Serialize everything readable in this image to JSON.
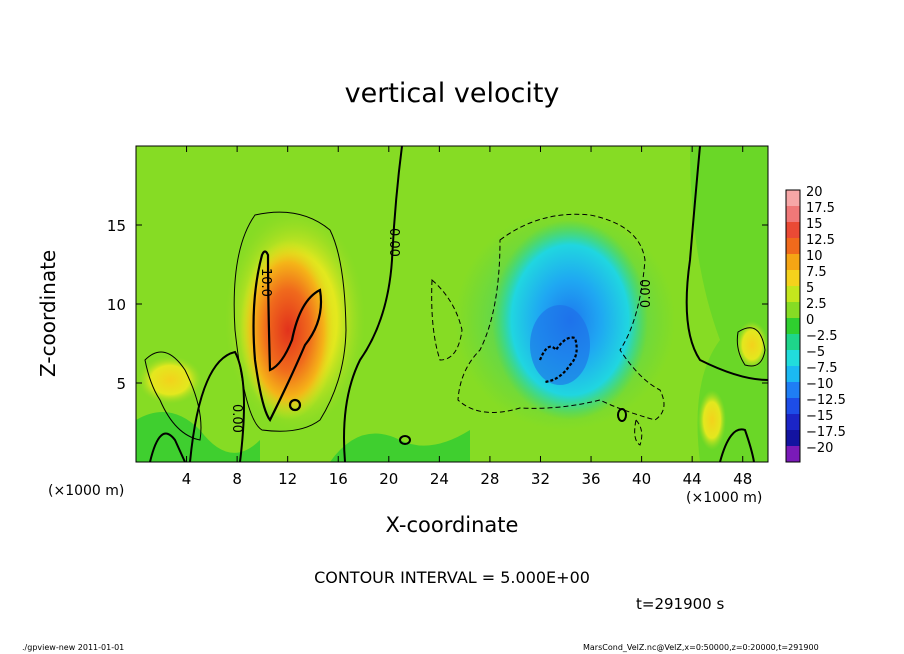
{
  "chart_data": {
    "type": "heatmap",
    "title": "vertical velocity",
    "xlabel": "X-coordinate",
    "ylabel": "Z-coordinate",
    "x_unit": "(×1000 m)",
    "y_unit": "(×1000 m)",
    "xlim": [
      0,
      50
    ],
    "ylim": [
      0,
      20
    ],
    "x_ticks": [
      "4",
      "8",
      "12",
      "16",
      "20",
      "24",
      "28",
      "32",
      "36",
      "40",
      "44",
      "48"
    ],
    "y_ticks": [
      "5",
      "10",
      "15"
    ],
    "colorbar": {
      "labels": [
        "20",
        "17.5",
        "15",
        "12.5",
        "10",
        "7.5",
        "5",
        "2.5",
        "0",
        "−2.5",
        "−5",
        "−7.5",
        "−10",
        "−12.5",
        "−15",
        "−17.5",
        "−20"
      ],
      "colors": [
        "#f7a7a7",
        "#f07878",
        "#ea4a35",
        "#f06a1c",
        "#f5a514",
        "#f5d21c",
        "#c4e61d",
        "#86dc24",
        "#2fcf2f",
        "#1ed58a",
        "#21dddc",
        "#1bb9f3",
        "#1f7ef5",
        "#1d4de8",
        "#1b25c6",
        "#1313a0",
        "#7a1ab8"
      ]
    },
    "contour_labels": [
      "10.0",
      "0.00",
      "0.00",
      "0.00"
    ],
    "contour_interval": "CONTOUR INTERVAL = 5.000E+00"
  },
  "time_label": "t=291900  s",
  "footer_left": "./gpview-new   2011-01-01",
  "footer_right": "MarsCond_VelZ.nc@VelZ,x=0:50000,z=0:20000,t=291900"
}
